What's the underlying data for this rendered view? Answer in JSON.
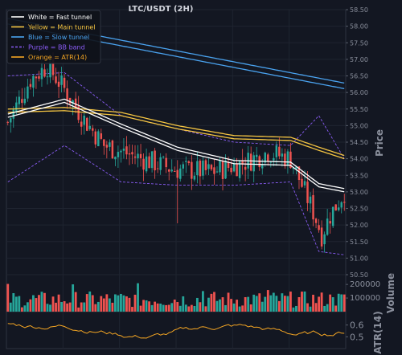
{
  "chart_data": [
    {
      "type": "candlestick",
      "title": "LTC/USDT (2H)",
      "ylabel": "Price",
      "ylim": [
        50.5,
        58.5
      ],
      "yticks": [
        "58.50",
        "58.00",
        "57.50",
        "57.00",
        "56.50",
        "56.00",
        "55.50",
        "55.00",
        "54.50",
        "54.00",
        "53.50",
        "53.00",
        "52.50",
        "52.00",
        "51.50",
        "51.00",
        "50.50"
      ],
      "legend": {
        "position": "top-left",
        "entries": [
          {
            "label": "White = Fast tunnel",
            "color": "#ffffff",
            "style": "solid"
          },
          {
            "label": "Yellow = Main tunnel",
            "color": "#f5c542",
            "style": "solid"
          },
          {
            "label": "Blue = Slow tunnel",
            "color": "#4aa3f0",
            "style": "solid"
          },
          {
            "label": "Purple = BB band",
            "color": "#8a5cf5",
            "style": "dashed"
          },
          {
            "label": "Orange = ATR(14)",
            "color": "#f5a623",
            "style": "solid"
          }
        ]
      },
      "candle_colors": {
        "up": "#26a69a",
        "down": "#ef5350"
      },
      "candles_count": 120,
      "key_levels": {
        "start_close": 55.1,
        "early_high": 56.9,
        "end_close": 53.0,
        "low": 51.5,
        "mid_spike_low": 52.05
      },
      "fast_tunnel": {
        "x": [
          0,
          20,
          40,
          60,
          80,
          100,
          110,
          119
        ],
        "y": [
          55.3,
          55.75,
          55.0,
          54.3,
          53.9,
          53.85,
          53.2,
          53.05
        ]
      },
      "main_tunnel": {
        "x": [
          0,
          20,
          40,
          60,
          80,
          100,
          110,
          119
        ],
        "y": [
          55.45,
          55.5,
          55.35,
          54.95,
          54.65,
          54.6,
          54.3,
          54.05
        ]
      },
      "slow_tunnel": {
        "x": [
          0,
          119
        ],
        "y": [
          58.15,
          56.2
        ]
      },
      "bb_band_upper": {
        "x": [
          0,
          20,
          40,
          60,
          80,
          100,
          110,
          119
        ],
        "y": [
          56.5,
          56.6,
          55.3,
          54.9,
          54.5,
          54.4,
          55.3,
          54.0
        ]
      },
      "bb_band_lower": {
        "x": [
          0,
          20,
          40,
          60,
          80,
          100,
          110,
          119
        ],
        "y": [
          53.3,
          54.4,
          53.3,
          53.2,
          53.2,
          53.3,
          51.2,
          51.1
        ]
      }
    },
    {
      "type": "bar",
      "ylabel": "Volume",
      "yticks": [
        "200000",
        "100000"
      ],
      "ylim": [
        0,
        260000
      ]
    },
    {
      "type": "line",
      "ylabel": "ATR(14)",
      "yticks": [
        "0.6",
        "0.5"
      ],
      "ylim": [
        0.4,
        0.7
      ],
      "color": "#f5a623"
    }
  ]
}
